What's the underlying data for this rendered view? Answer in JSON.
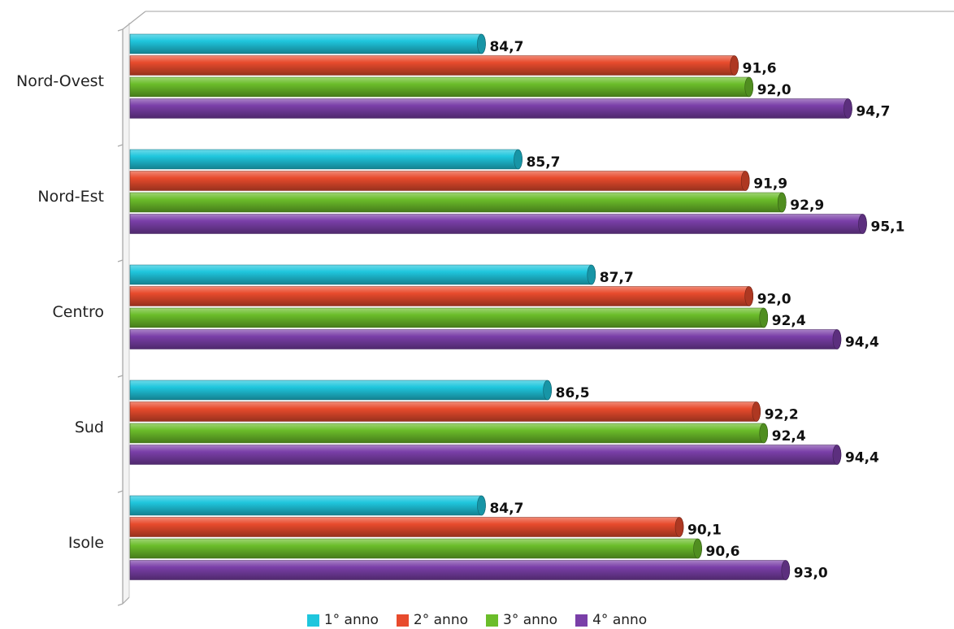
{
  "chart_data": {
    "type": "bar",
    "orientation": "horizontal",
    "style": "3d-cylinder",
    "categories": [
      "Nord-Ovest",
      "Nord-Est",
      "Centro",
      "Sud",
      "Isole"
    ],
    "series": [
      {
        "name": "1° anno",
        "color": "#1fc6dd",
        "values": [
          84.7,
          85.7,
          87.7,
          86.5,
          84.7
        ],
        "labels": [
          "84,7",
          "85,7",
          "87,7",
          "86,5",
          "84,7"
        ]
      },
      {
        "name": "2° anno",
        "color": "#e84b2d",
        "values": [
          91.6,
          91.9,
          92.0,
          92.2,
          90.1
        ],
        "labels": [
          "91,6",
          "91,9",
          "92,0",
          "92,2",
          "90,1"
        ]
      },
      {
        "name": "3° anno",
        "color": "#6bbd2a",
        "values": [
          92.0,
          92.9,
          92.4,
          92.4,
          90.6
        ],
        "labels": [
          "92,0",
          "92,9",
          "92,4",
          "92,4",
          "90,6"
        ]
      },
      {
        "name": "4° anno",
        "color": "#7a3fa8",
        "values": [
          94.7,
          95.1,
          94.4,
          94.4,
          93.0
        ],
        "labels": [
          "94,7",
          "95,1",
          "94,4",
          "94,4",
          "93,0"
        ]
      }
    ],
    "xlim": [
      75,
      96
    ],
    "grid": false,
    "legend": "bottom"
  }
}
